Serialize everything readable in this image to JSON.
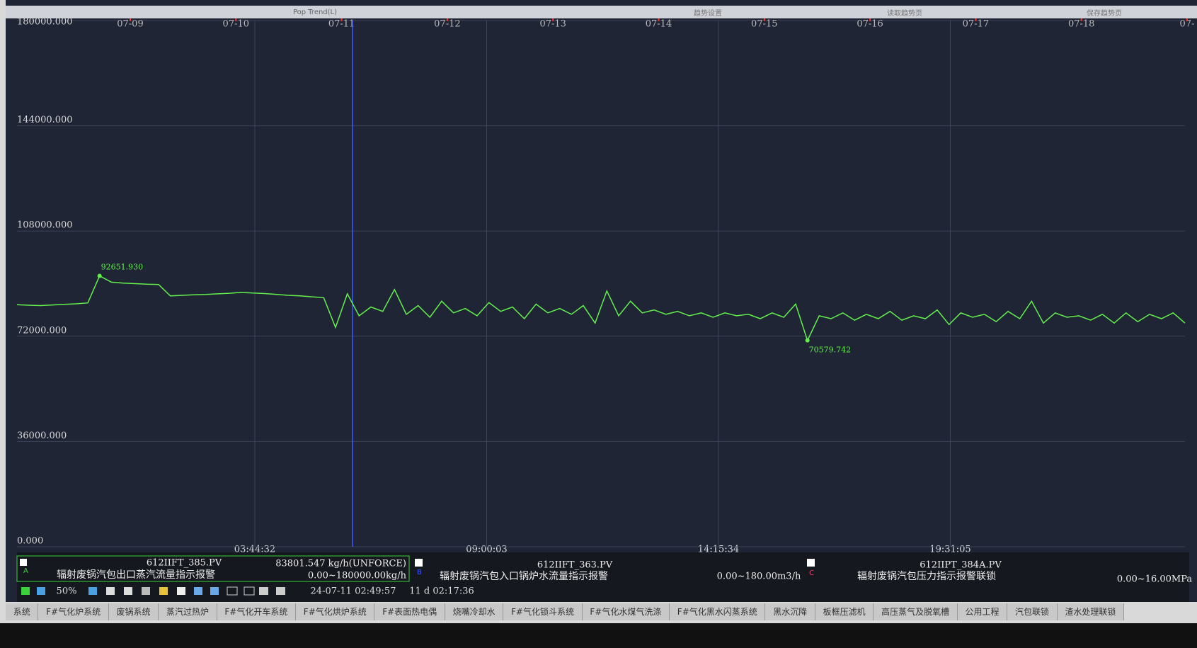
{
  "header": {
    "title": "Pop Trend(L)",
    "buttons": [
      "趋势设置",
      "读取趋势页",
      "保存趋势页"
    ]
  },
  "chart_data": {
    "type": "line",
    "ylim": [
      0,
      180000
    ],
    "yticks": [
      {
        "value": 0,
        "label": "0.000"
      },
      {
        "value": 36000,
        "label": "36000.000"
      },
      {
        "value": 72000,
        "label": "72000.000"
      },
      {
        "value": 108000,
        "label": "108000.000"
      },
      {
        "value": 144000,
        "label": "144000.000"
      },
      {
        "value": 180000,
        "label": "180000.000"
      }
    ],
    "grid": true,
    "date_labels": [
      "07-09",
      "07-10",
      "07-11",
      "07-12",
      "07-13",
      "07-14",
      "07-15",
      "07-16",
      "07-17",
      "07-18",
      "07-"
    ],
    "time_labels": [
      "03:44:32",
      "09:00:03",
      "14:15:34",
      "19:31:05"
    ],
    "series": [
      {
        "color": "#62f04c",
        "values": [
          82800,
          82600,
          82500,
          82700,
          82900,
          83100,
          83400,
          92651.93,
          90500,
          90200,
          90000,
          89800,
          89700,
          85800,
          86000,
          86200,
          86300,
          86500,
          86700,
          87000,
          86800,
          86600,
          86300,
          86000,
          85800,
          85500,
          85200,
          75000,
          86500,
          79000,
          82000,
          80500,
          88000,
          79500,
          82500,
          78500,
          84000,
          80000,
          81500,
          79000,
          83500,
          80500,
          82000,
          78000,
          83000,
          80000,
          81500,
          79500,
          82500,
          76500,
          87500,
          79000,
          84000,
          80000,
          81000,
          79500,
          80500,
          79000,
          80000,
          78500,
          80000,
          79000,
          79500,
          78000,
          80000,
          78500,
          83000,
          70579.742,
          79000,
          78000,
          80000,
          77500,
          79500,
          78000,
          80500,
          77500,
          79000,
          78000,
          81000,
          76000,
          80000,
          78500,
          79500,
          77000,
          80500,
          78000,
          84000,
          76500,
          80000,
          78500,
          79000,
          77500,
          79500,
          76500,
          80000,
          77000,
          79500,
          78000,
          80000,
          76500
        ]
      }
    ],
    "max_label": {
      "value": 92651.93,
      "label": "92651.930"
    },
    "min_label": {
      "value": 70579.742,
      "label": "70579.742"
    }
  },
  "pens": [
    {
      "letter": "A",
      "tag": "612IIFT_385.PV",
      "value": "83801.547 kg/h(UNFORCE)",
      "description": "辐射废锅汽包出口蒸汽流量指示报警",
      "range": "0.00~180000.00kg/h"
    },
    {
      "letter": "B",
      "tag": "612IIFT_363.PV",
      "description": "辐射废锅汽包入口锅炉水流量指示报警",
      "range": "0.00~180.00m3/h"
    },
    {
      "letter": "C",
      "tag": "612IIPT_384A.PV",
      "description": "辐射废锅汽包压力指示报警联锁",
      "range": "0.00~16.00MPa"
    }
  ],
  "toolbar": {
    "zoom": "50%",
    "cursor_time": "24-07-11 02:49:57",
    "span": "11 d 02:17:36"
  },
  "tabs": [
    "系统",
    "F#气化炉系统",
    "废锅系统",
    "蒸汽过热炉",
    "F#气化开车系统",
    "F#气化烘炉系统",
    "F#表面热电偶",
    "烧嘴冷却水",
    "F#气化锁斗系统",
    "F#气化水煤气洗涤",
    "F#气化黑水闪蒸系统",
    "黑水沉降",
    "板框压滤机",
    "高压蒸气及脱氧槽",
    "公用工程",
    "汽包联锁",
    "渣水处理联锁"
  ]
}
